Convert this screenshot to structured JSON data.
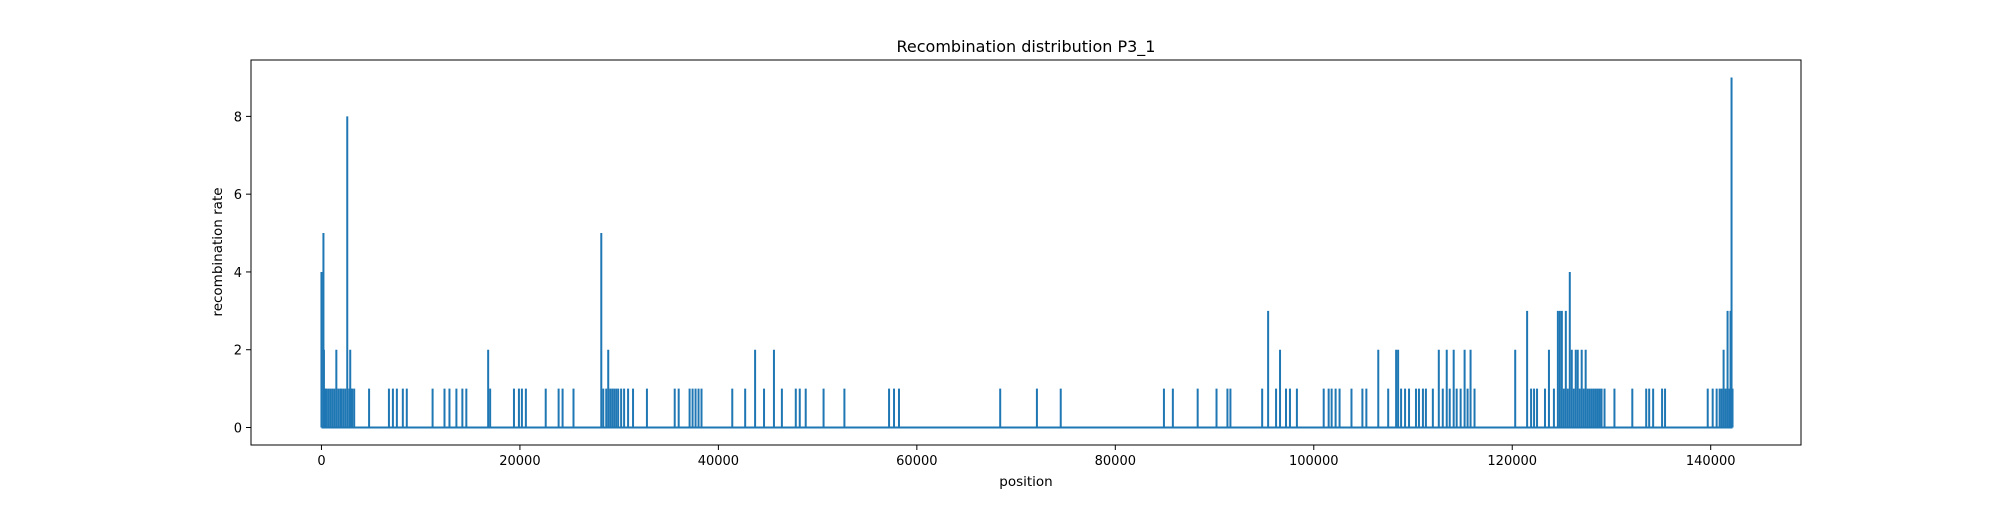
{
  "chart_data": {
    "type": "line",
    "title": "Recombination distribution P3_1",
    "xlabel": "position",
    "ylabel": "recombination rate",
    "xlim": [
      -7100,
      149100
    ],
    "ylim": [
      -0.45,
      9.45
    ],
    "xticks": [
      0,
      20000,
      40000,
      60000,
      80000,
      100000,
      120000,
      140000
    ],
    "yticks": [
      0,
      2,
      4,
      6,
      8
    ],
    "grid": false,
    "colors": {
      "line": "#1f77b4",
      "axes": "#000000",
      "background": "#ffffff"
    },
    "series": [
      {
        "x": [
          0,
          200,
          250,
          300,
          400,
          500,
          700,
          900,
          1100,
          1300,
          1500,
          1700,
          1900,
          2000,
          2200,
          2400,
          2600,
          2800,
          2900,
          3000,
          3100,
          3300,
          4800,
          6800,
          7200,
          7600,
          8200,
          8600,
          11200,
          12400,
          12900,
          13600,
          14200,
          14600,
          16800,
          17000,
          19400,
          19900,
          20200,
          20600,
          22600,
          23900,
          24300,
          25400,
          28200,
          28400,
          28700,
          28900,
          29100,
          29300,
          29500,
          29700,
          29900,
          30200,
          30500,
          30900,
          31400,
          32800,
          35600,
          36000,
          37100,
          37400,
          37700,
          38000,
          38300,
          41400,
          42700,
          43700,
          44600,
          45600,
          46400,
          47800,
          48200,
          48800,
          50600,
          52700,
          57200,
          57700,
          58200,
          68400,
          72100,
          74500,
          84900,
          85800,
          88300,
          90200,
          91300,
          91600,
          94800,
          95400,
          96200,
          96600,
          97200,
          97600,
          98300,
          101000,
          101500,
          101800,
          102200,
          102600,
          103800,
          104900,
          105300,
          106500,
          107500,
          108300,
          108500,
          108800,
          109200,
          109600,
          110300,
          110600,
          111000,
          111300,
          112000,
          112600,
          113000,
          113400,
          113700,
          114100,
          114400,
          114800,
          115200,
          115500,
          115800,
          116200,
          120300,
          121500,
          121900,
          122200,
          122500,
          123300,
          123700,
          124200,
          124600,
          124800,
          125000,
          125200,
          125400,
          125600,
          125800,
          126000,
          126200,
          126400,
          126600,
          126800,
          127000,
          127200,
          127400,
          127600,
          127800,
          128000,
          128200,
          128400,
          128600,
          128800,
          129000,
          129300,
          130300,
          132100,
          133500,
          133800,
          134200,
          135100,
          135400,
          139700,
          140200,
          140600,
          140900,
          141100,
          141300,
          141500,
          141700,
          141900,
          142000,
          142100,
          142200
        ],
        "y": [
          4,
          5,
          2,
          1,
          1,
          1,
          1,
          1,
          1,
          1,
          2,
          1,
          1,
          1,
          1,
          1,
          8,
          1,
          2,
          1,
          1,
          1,
          1,
          1,
          1,
          1,
          1,
          1,
          1,
          1,
          1,
          1,
          1,
          1,
          2,
          1,
          1,
          1,
          1,
          1,
          1,
          1,
          1,
          1,
          5,
          1,
          1,
          2,
          1,
          1,
          1,
          1,
          1,
          1,
          1,
          1,
          1,
          1,
          1,
          1,
          1,
          1,
          1,
          1,
          1,
          1,
          1,
          2,
          1,
          2,
          1,
          1,
          1,
          1,
          1,
          1,
          1,
          1,
          1,
          1,
          1,
          1,
          1,
          1,
          1,
          1,
          1,
          1,
          1,
          3,
          1,
          2,
          1,
          1,
          1,
          1,
          1,
          1,
          1,
          1,
          1,
          1,
          1,
          2,
          1,
          2,
          2,
          1,
          1,
          1,
          1,
          1,
          1,
          1,
          1,
          2,
          1,
          2,
          1,
          2,
          1,
          1,
          2,
          1,
          2,
          1,
          2,
          3,
          1,
          1,
          1,
          1,
          2,
          1,
          3,
          3,
          3,
          1,
          3,
          1,
          4,
          2,
          1,
          2,
          2,
          1,
          2,
          1,
          2,
          1,
          1,
          1,
          1,
          1,
          1,
          1,
          1,
          1,
          1,
          1,
          1,
          1,
          1,
          1,
          1,
          1,
          1,
          1,
          1,
          1,
          2,
          1,
          3,
          1,
          3,
          9,
          1
        ]
      }
    ]
  }
}
